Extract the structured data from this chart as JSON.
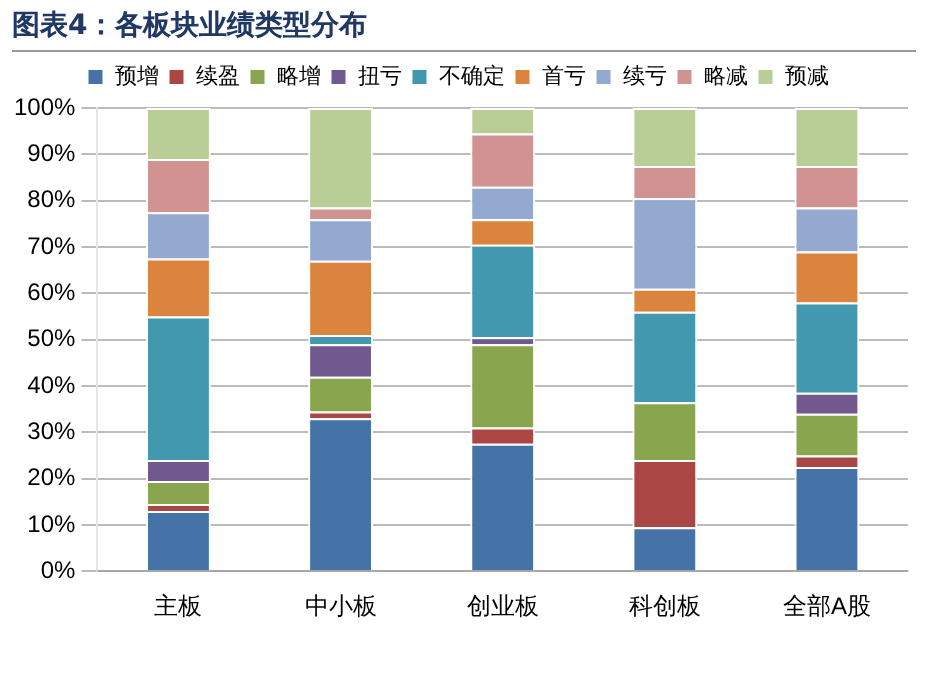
{
  "chart_data": {
    "type": "bar",
    "title": "图表4：各板块业绩类型分布",
    "stacked": true,
    "legend": "top",
    "grid": "y",
    "categories": [
      "主板",
      "中小板",
      "创业板",
      "科创板",
      "全部A股"
    ],
    "ylim": [
      0,
      100
    ],
    "yticks": [
      {
        "value": 0,
        "label": "0%"
      },
      {
        "value": 10,
        "label": "10%"
      },
      {
        "value": 20,
        "label": "20%"
      },
      {
        "value": 30,
        "label": "30%"
      },
      {
        "value": 40,
        "label": "40%"
      },
      {
        "value": 50,
        "label": "50%"
      },
      {
        "value": 60,
        "label": "60%"
      },
      {
        "value": 70,
        "label": "70%"
      },
      {
        "value": 80,
        "label": "80%"
      },
      {
        "value": 90,
        "label": "90%"
      },
      {
        "value": 100,
        "label": "100%"
      }
    ],
    "series": [
      {
        "name": "预增",
        "color": "#4572a7",
        "values": [
          13,
          33,
          27.5,
          9.5,
          22.5
        ]
      },
      {
        "name": "续盈",
        "color": "#aa4643",
        "values": [
          1.5,
          1.5,
          3.5,
          14.5,
          2.5
        ]
      },
      {
        "name": "略增",
        "color": "#89a54e",
        "values": [
          5,
          7.5,
          18,
          12.5,
          9
        ]
      },
      {
        "name": "扭亏",
        "color": "#71588f",
        "values": [
          4.5,
          7,
          1.5,
          0,
          4.5
        ]
      },
      {
        "name": "不确定",
        "color": "#4198af",
        "values": [
          31,
          2,
          20,
          19.5,
          19.5
        ]
      },
      {
        "name": "首亏",
        "color": "#db843d",
        "values": [
          12.5,
          16,
          5.5,
          5,
          11
        ]
      },
      {
        "name": "续亏",
        "color": "#93a9cf",
        "values": [
          10,
          9,
          7,
          19.5,
          9.5
        ]
      },
      {
        "name": "略减",
        "color": "#d19392",
        "values": [
          11.5,
          2.5,
          11.5,
          7,
          9
        ]
      },
      {
        "name": "预减",
        "color": "#b9cd96",
        "values": [
          11,
          21.5,
          5.5,
          12.5,
          12.5
        ]
      }
    ]
  }
}
